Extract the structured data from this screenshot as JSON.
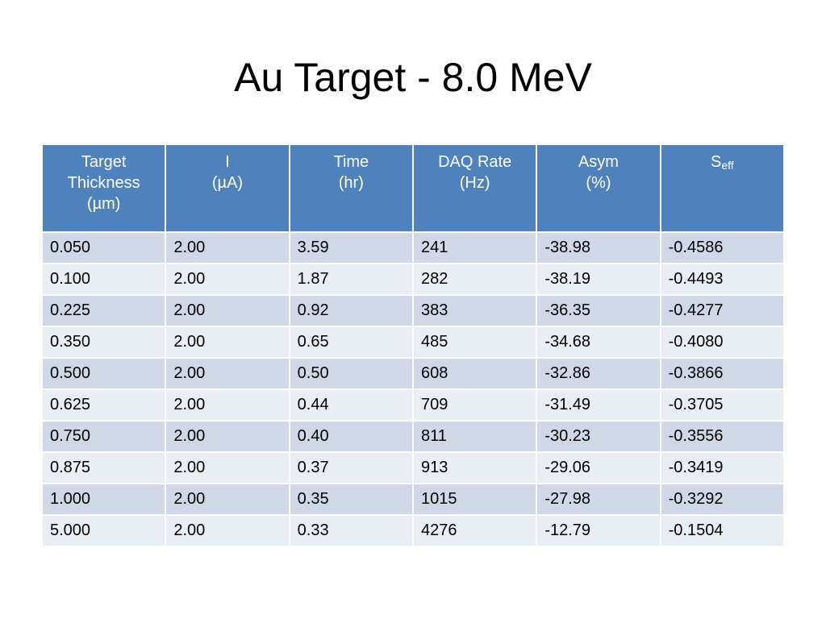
{
  "slide": {
    "title": "Au Target - 8.0 MeV"
  },
  "table": {
    "headers": [
      {
        "lines": [
          "Target",
          "Thickness",
          "(µm)"
        ]
      },
      {
        "lines": [
          "I",
          "(µA)"
        ]
      },
      {
        "lines": [
          "Time",
          "(hr)"
        ]
      },
      {
        "lines": [
          "DAQ Rate",
          "(Hz)"
        ]
      },
      {
        "lines": [
          "Asym",
          "(%)"
        ]
      },
      {
        "main": "S",
        "sub": "eff"
      }
    ],
    "rows": [
      [
        "0.050",
        "2.00",
        "3.59",
        "241",
        "-38.98",
        "-0.4586"
      ],
      [
        "0.100",
        "2.00",
        "1.87",
        "282",
        "-38.19",
        "-0.4493"
      ],
      [
        "0.225",
        "2.00",
        "0.92",
        "383",
        "-36.35",
        "-0.4277"
      ],
      [
        "0.350",
        "2.00",
        "0.65",
        "485",
        "-34.68",
        "-0.4080"
      ],
      [
        "0.500",
        "2.00",
        "0.50",
        "608",
        "-32.86",
        "-0.3866"
      ],
      [
        "0.625",
        "2.00",
        "0.44",
        "709",
        "-31.49",
        "-0.3705"
      ],
      [
        "0.750",
        "2.00",
        "0.40",
        "811",
        "-30.23",
        "-0.3556"
      ],
      [
        "0.875",
        "2.00",
        "0.37",
        "913",
        "-29.06",
        "-0.3419"
      ],
      [
        "1.000",
        "2.00",
        "0.35",
        "1015",
        "-27.98",
        "-0.3292"
      ],
      [
        "5.000",
        "2.00",
        "0.33",
        "4276",
        "-12.79",
        "-0.1504"
      ]
    ]
  },
  "colors": {
    "header_bg": "#4f81bd",
    "row_band_1": "#d0d8e8",
    "row_band_2": "#e9edf4"
  }
}
